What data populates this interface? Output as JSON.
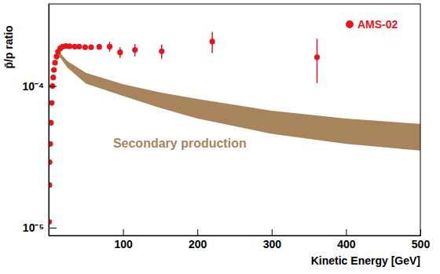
{
  "chart_data": {
    "type": "scatter",
    "x_label": "Kinetic Energy [GeV]",
    "y_label": "p̄/p ratio",
    "log": "y",
    "legend": "upper right",
    "xlim": [
      0,
      500
    ],
    "xticks": [
      100,
      200,
      300,
      400,
      500
    ],
    "ylim": [
      8.8e-06,
      0.00038
    ],
    "yticks": [
      {
        "value": 1e-05,
        "label": "10⁻⁵"
      },
      {
        "value": 0.0001,
        "label": "10⁻⁴"
      }
    ],
    "series": [
      {
        "name": "AMS-02",
        "type": "scatter",
        "color": "#e8141b",
        "marker": "circle",
        "x": [
          0.5,
          1,
          1.2,
          2,
          3,
          4,
          5,
          6,
          7,
          8.5,
          10.5,
          12.5,
          15.5,
          19,
          23,
          28,
          35,
          41,
          49,
          57,
          68,
          82,
          96,
          116,
          152,
          220,
          361
        ],
        "values": [
          1.1e-05,
          2e-05,
          2.9e-05,
          3.9e-05,
          5.5e-05,
          7.6e-05,
          0.0001,
          0.000115,
          0.00013,
          0.000146,
          0.000162,
          0.000175,
          0.000185,
          0.00019,
          0.000192,
          0.000191,
          0.00019,
          0.00019,
          0.000188,
          0.000188,
          0.000189,
          0.00019,
          0.000173,
          0.00018,
          0.000176,
          0.000206,
          0.00016
        ],
        "errors": [
          0,
          0,
          0,
          0,
          0,
          0,
          0,
          0,
          0,
          0,
          0,
          0,
          0,
          0,
          0,
          0,
          0,
          0,
          0,
          5e-06,
          8e-06,
          1.5e-05,
          1.5e-05,
          1.8e-05,
          2e-05,
          3.5e-05,
          5.5e-05
        ]
      },
      {
        "name": "Secondary production",
        "type": "area",
        "color": "#a8845c",
        "x": [
          10,
          15,
          25,
          50,
          100,
          150,
          200,
          300,
          400,
          500
        ],
        "lower": [
          0.00015,
          0.00016,
          0.000135,
          0.000104,
          8.5e-05,
          7e-05,
          5.9e-05,
          4.6e-05,
          3.9e-05,
          3.5e-05
        ],
        "upper": [
          0.000155,
          0.000172,
          0.00015,
          0.000124,
          0.000103,
          9e-05,
          8.1e-05,
          6.7e-05,
          5.9e-05,
          5.4e-05
        ]
      }
    ]
  }
}
